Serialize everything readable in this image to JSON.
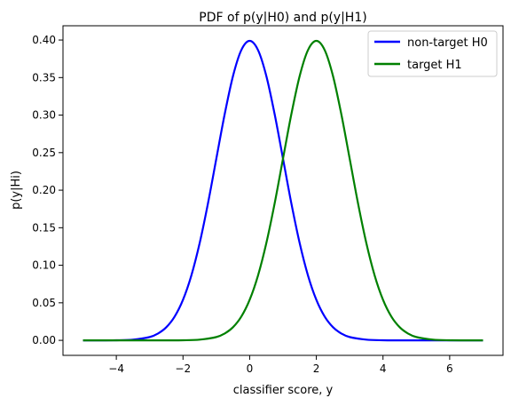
{
  "chart_data": {
    "type": "line",
    "title": "PDF of p(y|H0) and p(y|H1)",
    "xlabel": "classifier score, y",
    "ylabel": "p(y|Hi)",
    "xlim": [
      -5.6,
      7.6
    ],
    "ylim": [
      -0.02,
      0.419
    ],
    "x_ticks": [
      -4,
      -2,
      0,
      2,
      4,
      6
    ],
    "x_tick_labels": [
      "−4",
      "−2",
      "0",
      "2",
      "4",
      "6"
    ],
    "y_ticks": [
      0.0,
      0.05,
      0.1,
      0.15,
      0.2,
      0.25,
      0.3,
      0.35,
      0.4
    ],
    "y_tick_labels": [
      "0.00",
      "0.05",
      "0.10",
      "0.15",
      "0.20",
      "0.25",
      "0.30",
      "0.35",
      "0.40"
    ],
    "grid": false,
    "legend_position": "top-right",
    "series": [
      {
        "name": "non-target H0",
        "color": "#0000ff",
        "x": [
          -5,
          -4.5,
          -4,
          -3.5,
          -3,
          -2.75,
          -2.5,
          -2.25,
          -2,
          -1.75,
          -1.5,
          -1.25,
          -1,
          -0.75,
          -0.5,
          -0.25,
          0,
          0.25,
          0.5,
          0.75,
          1,
          1.25,
          1.5,
          1.75,
          2,
          2.25,
          2.5,
          2.75,
          3,
          3.5,
          4,
          4.5,
          5,
          6,
          7
        ],
        "y": [
          0.0,
          0.0,
          0.0001,
          0.0009,
          0.0044,
          0.0091,
          0.0175,
          0.0317,
          0.054,
          0.0863,
          0.1295,
          0.1826,
          0.242,
          0.3011,
          0.3521,
          0.3867,
          0.3989,
          0.3867,
          0.3521,
          0.3011,
          0.242,
          0.1826,
          0.1295,
          0.0863,
          0.054,
          0.0317,
          0.0175,
          0.0091,
          0.0044,
          0.0009,
          0.0001,
          0.0,
          0.0,
          0.0,
          0.0
        ]
      },
      {
        "name": "target H1",
        "color": "#008000",
        "x": [
          -5,
          -4,
          -3,
          -2.5,
          -2,
          -1.5,
          -1,
          -0.75,
          -0.5,
          -0.25,
          0,
          0.25,
          0.5,
          0.75,
          1,
          1.25,
          1.5,
          1.75,
          2,
          2.25,
          2.5,
          2.75,
          3,
          3.25,
          3.5,
          3.75,
          4,
          4.25,
          4.5,
          4.75,
          5,
          5.5,
          6,
          6.5,
          7
        ],
        "y": [
          0.0,
          0.0,
          0.0,
          0.0,
          0.0001,
          0.0009,
          0.0044,
          0.0091,
          0.0175,
          0.0317,
          0.054,
          0.0863,
          0.1295,
          0.1826,
          0.242,
          0.3011,
          0.3521,
          0.3867,
          0.3989,
          0.3867,
          0.3521,
          0.3011,
          0.242,
          0.1826,
          0.1295,
          0.0863,
          0.054,
          0.0317,
          0.0175,
          0.0091,
          0.0044,
          0.0009,
          0.0001,
          0.0,
          0.0
        ]
      }
    ]
  }
}
